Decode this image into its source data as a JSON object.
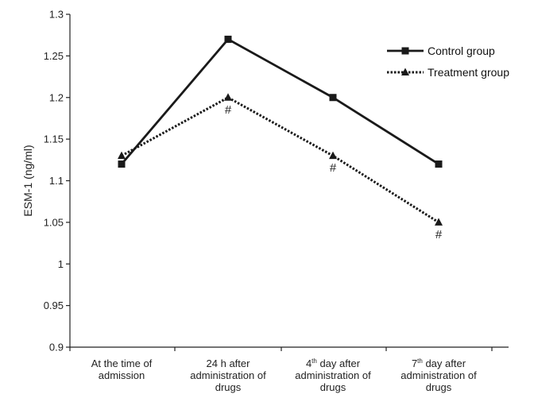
{
  "chart_data": {
    "type": "line",
    "ylabel": "ESM-1 (ng/ml)",
    "ylim": [
      0.9,
      1.3
    ],
    "yticks": [
      "0.9",
      "0.95",
      "1",
      "1.05",
      "1.1",
      "1.15",
      "1.2",
      "1.25",
      "1.3"
    ],
    "categories": [
      [
        "At the time of",
        "admission"
      ],
      [
        "24 h after",
        "administration of",
        "drugs"
      ],
      [
        {
          "base": "4",
          "sup": "th",
          "rest": " day after"
        },
        "administration of",
        "drugs"
      ],
      [
        {
          "base": "7",
          "sup": "th",
          "rest": " day after"
        },
        "administration of",
        "drugs"
      ]
    ],
    "series": [
      {
        "name": "Control group",
        "values": [
          1.12,
          1.27,
          1.2,
          1.12
        ],
        "style": "solid",
        "marker": "square",
        "color": "#1a1a1a"
      },
      {
        "name": "Treatment group",
        "values": [
          1.13,
          1.2,
          1.13,
          1.05
        ],
        "style": "dotted",
        "marker": "triangle",
        "color": "#1a1a1a"
      }
    ],
    "annotations": [
      {
        "category_index": 1,
        "text": "#"
      },
      {
        "category_index": 2,
        "text": "#"
      },
      {
        "category_index": 3,
        "text": "#"
      }
    ],
    "legend_position": "top-right",
    "grid": false
  }
}
